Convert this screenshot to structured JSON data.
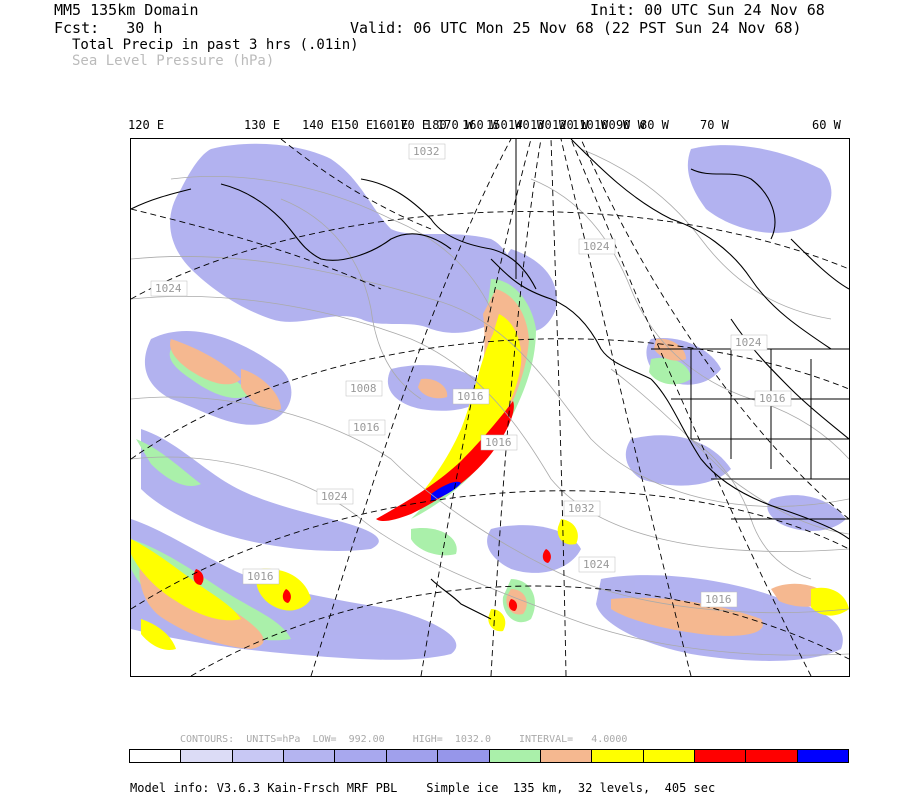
{
  "header": {
    "domain": "MM5 135km Domain",
    "fcst": "Fcst:   30 h",
    "init": "Init: 00 UTC Sun 24 Nov 68",
    "valid": "Valid: 06 UTC Mon 25 Nov 68 (22 PST Sun 24 Nov 68)",
    "field_precip": "Total Precip in past 3 hrs (.01in)",
    "field_pressure": "Sea Level Pressure (hPa)"
  },
  "longitude_labels": [
    "120 E",
    "130 E",
    "140 E",
    "150 E",
    "160 E",
    "170 E",
    "180",
    "170 W",
    "160 W",
    "150 W",
    "140 W",
    "130 W",
    "120 W",
    "110 W",
    "100 W",
    "90 W",
    "80 W",
    "70 W",
    "60 W"
  ],
  "pressure_labels": [
    "1032",
    "1024",
    "1024",
    "1008",
    "1016",
    "1024",
    "1016",
    "1016",
    "1016",
    "1032",
    "1024",
    "1016",
    "1016",
    "1024"
  ],
  "legend": {
    "contours": "CONTOURS:  UNITS=hPa  LOW=  992.00",
    "high": "HIGH=  1032.0",
    "interval": "INTERVAL=   4.0000",
    "colors": [
      "#ffffff",
      "#dcdcf6",
      "#c8c8f4",
      "#b4b4f0",
      "#a8a8ee",
      "#a0a0ec",
      "#9696ea",
      "#aaf0aa",
      "#f5b890",
      "#ffff00",
      "#ffff00",
      "#ff0000",
      "#ff0000",
      "#0000ff"
    ]
  },
  "model_info": "Model info: V3.6.3 Kain-Frsch MRF PBL    Simple ice  135 km,  32 levels,  405 sec",
  "colors": {
    "light_precip": "#aaaaee",
    "green": "#aaf0aa",
    "orange": "#f5b890",
    "yellow": "#ffff00",
    "red": "#ff0000",
    "blue": "#0000ff",
    "isobar": "#aaaaaa"
  }
}
